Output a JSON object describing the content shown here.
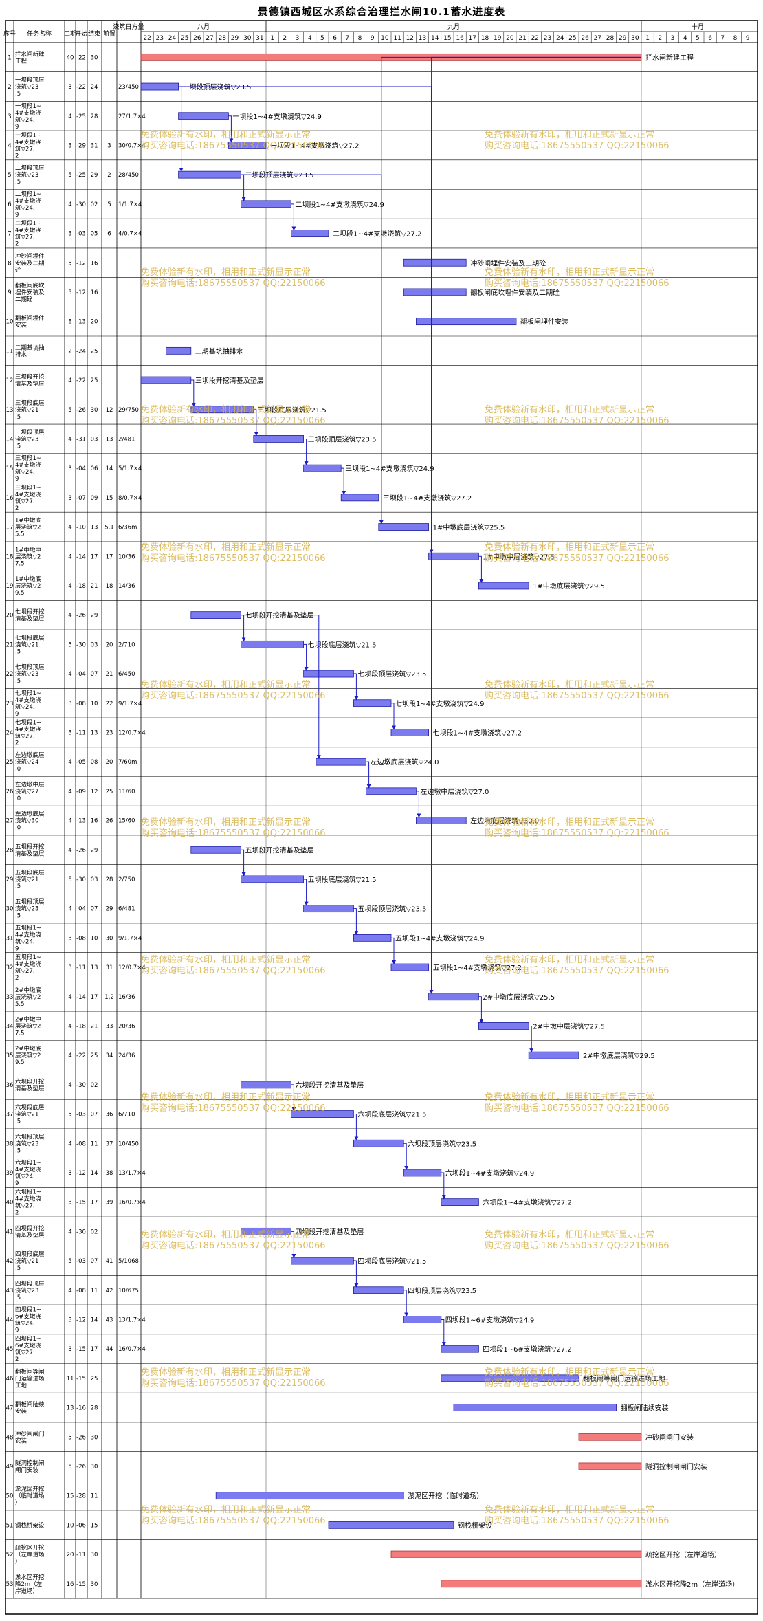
{
  "title": "景德镇西城区水系综合治理拦水闸10.1蓄水进度表",
  "columns": [
    "序号",
    "任务名称",
    "工期",
    "开始",
    "结束",
    "前置",
    "浇筑日方量"
  ],
  "months": [
    "八月",
    "九月",
    "十月"
  ],
  "day_labels": [
    "22",
    "23",
    "24",
    "25",
    "26",
    "27",
    "28",
    "29",
    "30",
    "31",
    "1",
    "2",
    "3",
    "4",
    "5",
    "6",
    "7",
    "8",
    "9",
    "10",
    "11",
    "12",
    "13",
    "14",
    "15",
    "16",
    "17",
    "18",
    "19",
    "20",
    "21",
    "22",
    "23",
    "24",
    "25",
    "26",
    "27",
    "28",
    "29",
    "30",
    "1",
    "2",
    "3",
    "4",
    "5",
    "6",
    "7",
    "8",
    "9"
  ],
  "watermark": {
    "line1": "免费体验新有水印，相用和正式新显示正常",
    "line2": "购买咨询电话:18675550537 QQ:22150066"
  },
  "colors": {
    "task_bar": "#7b7bef",
    "critical_bar": "#f47b7b",
    "link": "#1a1ac8",
    "grid": "#000000"
  },
  "chart_data": {
    "type": "gantt",
    "x_start": "08-22",
    "x_end": "10-09",
    "today_line": "09-01",
    "tasks": [
      {
        "id": "1",
        "name": "拦水闸新建工程",
        "dur": "40",
        "start": "-22",
        "end": "30",
        "pred": "",
        "vol": "",
        "bar_start": "08-22",
        "bar_end": "09-30",
        "critical": true,
        "label": "拦水闸新建工程"
      },
      {
        "id": "2",
        "name": "一坝段顶层浇筑▽23.5",
        "dur": "3",
        "start": "-22",
        "end": "24",
        "pred": "",
        "vol": "23/450",
        "bar_start": "08-22",
        "bar_end": "08-24",
        "critical": false,
        "label": "一坝段顶层浇筑▽23.5"
      },
      {
        "id": "3",
        "name": "一坝段1~4#支墩浇筑▽24.9",
        "dur": "4",
        "start": "-25",
        "end": "28",
        "pred": "",
        "vol": "27/1.7×4",
        "bar_start": "08-25",
        "bar_end": "08-28",
        "critical": false,
        "label": "一坝段1~4#支墩浇筑▽24.9"
      },
      {
        "id": "4",
        "name": "一坝段1~4#支墩浇筑▽27.2",
        "dur": "3",
        "start": "-29",
        "end": "31",
        "pred": "3",
        "vol": "30/0.7×4",
        "bar_start": "08-29",
        "bar_end": "08-31",
        "critical": false,
        "label": "一坝段1~4#支墩浇筑▽27.2"
      },
      {
        "id": "5",
        "name": "二坝段顶层浇筑▽23.5",
        "dur": "5",
        "start": "-25",
        "end": "29",
        "pred": "2",
        "vol": "28/450",
        "bar_start": "08-25",
        "bar_end": "08-29",
        "critical": false,
        "label": "二坝段顶层浇筑▽23.5"
      },
      {
        "id": "6",
        "name": "二坝段1~4#支墩浇筑▽24.9",
        "dur": "4",
        "start": "-30",
        "end": "02",
        "pred": "5",
        "vol": "1/1.7×4",
        "bar_start": "08-30",
        "bar_end": "09-02",
        "critical": false,
        "label": "二坝段1~4#支墩浇筑▽24.9"
      },
      {
        "id": "7",
        "name": "二坝段1~4#支墩浇筑▽27.2",
        "dur": "3",
        "start": "-03",
        "end": "05",
        "pred": "6",
        "vol": "4/0.7×4",
        "bar_start": "09-03",
        "bar_end": "09-05",
        "critical": false,
        "label": "二坝段1~4#支墩浇筑▽27.2"
      },
      {
        "id": "8",
        "name": "冲砂闸埋件安装及二期砼",
        "dur": "5",
        "start": "-12",
        "end": "16",
        "pred": "",
        "vol": "",
        "bar_start": "09-12",
        "bar_end": "09-16",
        "critical": false,
        "label": "冲砂闸埋件安装及二期砼"
      },
      {
        "id": "9",
        "name": "翻板闸底坎埋件安装及二期砼",
        "dur": "5",
        "start": "-12",
        "end": "16",
        "pred": "",
        "vol": "",
        "bar_start": "09-12",
        "bar_end": "09-16",
        "critical": false,
        "label": "翻板闸底坎埋件安装及二期砼"
      },
      {
        "id": "10",
        "name": "翻板闸埋件安装",
        "dur": "8",
        "start": "-13",
        "end": "20",
        "pred": "",
        "vol": "",
        "bar_start": "09-13",
        "bar_end": "09-20",
        "critical": false,
        "label": "翻板闸埋件安装"
      },
      {
        "id": "11",
        "name": "二期基坑抽排水",
        "dur": "2",
        "start": "-24",
        "end": "25",
        "pred": "",
        "vol": "",
        "bar_start": "08-24",
        "bar_end": "08-25",
        "critical": false,
        "label": "二期基坑抽排水"
      },
      {
        "id": "12",
        "name": "三坝段开挖清基及垫层",
        "dur": "4",
        "start": "-22",
        "end": "25",
        "pred": "",
        "vol": "",
        "bar_start": "08-22",
        "bar_end": "08-25",
        "critical": false,
        "label": "三坝段开挖清基及垫层"
      },
      {
        "id": "13",
        "name": "三坝段底层浇筑▽21.5",
        "dur": "5",
        "start": "-26",
        "end": "30",
        "pred": "12",
        "vol": "29/750",
        "bar_start": "08-26",
        "bar_end": "08-30",
        "critical": false,
        "label": "三坝段底层浇筑▽21.5"
      },
      {
        "id": "14",
        "name": "三坝段顶层浇筑▽23.5",
        "dur": "4",
        "start": "-31",
        "end": "03",
        "pred": "13",
        "vol": "2/481",
        "bar_start": "08-31",
        "bar_end": "09-03",
        "critical": false,
        "label": "三坝段顶层浇筑▽23.5"
      },
      {
        "id": "15",
        "name": "三坝段1~4#支墩浇筑▽24.9",
        "dur": "3",
        "start": "-04",
        "end": "06",
        "pred": "14",
        "vol": "5/1.7×4",
        "bar_start": "09-04",
        "bar_end": "09-06",
        "critical": false,
        "label": "三坝段1~4#支墩浇筑▽24.9"
      },
      {
        "id": "16",
        "name": "三坝段1~4#支墩浇筑▽27.2",
        "dur": "3",
        "start": "-07",
        "end": "09",
        "pred": "15",
        "vol": "8/0.7×4",
        "bar_start": "09-07",
        "bar_end": "09-09",
        "critical": false,
        "label": "三坝段1~4#支墩浇筑▽27.2"
      },
      {
        "id": "17",
        "name": "1#中墩底层浇筑▽25.5",
        "dur": "4",
        "start": "-10",
        "end": "13",
        "pred": "5,1",
        "vol": "6/36m",
        "bar_start": "09-10",
        "bar_end": "09-13",
        "critical": false,
        "label": "1#中墩底层浇筑▽25.5"
      },
      {
        "id": "18",
        "name": "1#中墩中层浇筑▽27.5",
        "dur": "4",
        "start": "-14",
        "end": "17",
        "pred": "17",
        "vol": "10/36",
        "bar_start": "09-14",
        "bar_end": "09-17",
        "critical": false,
        "label": "1#中墩中层浇筑▽27.5"
      },
      {
        "id": "19",
        "name": "1#中墩底层浇筑▽29.5",
        "dur": "4",
        "start": "-18",
        "end": "21",
        "pred": "18",
        "vol": "14/36",
        "bar_start": "09-18",
        "bar_end": "09-21",
        "critical": false,
        "label": "1#中墩底层浇筑▽29.5"
      },
      {
        "id": "20",
        "name": "七坝段开挖清基及垫层",
        "dur": "4",
        "start": "-26",
        "end": "29",
        "pred": "",
        "vol": "",
        "bar_start": "08-26",
        "bar_end": "08-29",
        "critical": false,
        "label": "七坝段开挖清基及垫层"
      },
      {
        "id": "21",
        "name": "七坝段底层浇筑▽21.5",
        "dur": "5",
        "start": "-30",
        "end": "03",
        "pred": "20",
        "vol": "2/710",
        "bar_start": "08-30",
        "bar_end": "09-03",
        "critical": false,
        "label": "七坝段底层浇筑▽21.5"
      },
      {
        "id": "22",
        "name": "七坝段顶层浇筑▽23.5",
        "dur": "4",
        "start": "-04",
        "end": "07",
        "pred": "21",
        "vol": "6/450",
        "bar_start": "09-04",
        "bar_end": "09-07",
        "critical": false,
        "label": "七坝段顶层浇筑▽23.5"
      },
      {
        "id": "23",
        "name": "七坝段1~4#支墩浇筑▽24.9",
        "dur": "3",
        "start": "-08",
        "end": "10",
        "pred": "22",
        "vol": "9/1.7×4",
        "bar_start": "09-08",
        "bar_end": "09-10",
        "critical": false,
        "label": "七坝段1~4#支墩浇筑▽24.9"
      },
      {
        "id": "24",
        "name": "七坝段1~4#支墩浇筑▽27.2",
        "dur": "3",
        "start": "-11",
        "end": "13",
        "pred": "23",
        "vol": "12/0.7×4",
        "bar_start": "09-11",
        "bar_end": "09-13",
        "critical": false,
        "label": "七坝段1~4#支墩浇筑▽27.2"
      },
      {
        "id": "25",
        "name": "左边墩底层浇筑▽24.0",
        "dur": "4",
        "start": "-05",
        "end": "08",
        "pred": "20",
        "vol": "7/60m",
        "bar_start": "09-05",
        "bar_end": "09-08",
        "critical": false,
        "label": "左边墩底层浇筑▽24.0"
      },
      {
        "id": "26",
        "name": "左边墩中层浇筑▽27.0",
        "dur": "4",
        "start": "-09",
        "end": "12",
        "pred": "25",
        "vol": "11/60",
        "bar_start": "09-09",
        "bar_end": "09-12",
        "critical": false,
        "label": "左边墩中层浇筑▽27.0"
      },
      {
        "id": "27",
        "name": "左边墩底层浇筑▽30.0",
        "dur": "4",
        "start": "-13",
        "end": "16",
        "pred": "26",
        "vol": "15/60",
        "bar_start": "09-13",
        "bar_end": "09-16",
        "critical": false,
        "label": "左边墩底层浇筑▽30.0"
      },
      {
        "id": "28",
        "name": "五坝段开挖清基及垫层",
        "dur": "4",
        "start": "-26",
        "end": "29",
        "pred": "",
        "vol": "",
        "bar_start": "08-26",
        "bar_end": "08-29",
        "critical": false,
        "label": "五坝段开挖清基及垫层"
      },
      {
        "id": "29",
        "name": "五坝段底层浇筑▽21.5",
        "dur": "5",
        "start": "-30",
        "end": "03",
        "pred": "28",
        "vol": "2/750",
        "bar_start": "08-30",
        "bar_end": "09-03",
        "critical": false,
        "label": "五坝段底层浇筑▽21.5"
      },
      {
        "id": "30",
        "name": "五坝段顶层浇筑▽23.5",
        "dur": "4",
        "start": "-04",
        "end": "07",
        "pred": "29",
        "vol": "6/481",
        "bar_start": "09-04",
        "bar_end": "09-07",
        "critical": false,
        "label": "五坝段顶层浇筑▽23.5"
      },
      {
        "id": "31",
        "name": "五坝段1~4#支墩浇筑▽24.9",
        "dur": "3",
        "start": "-08",
        "end": "10",
        "pred": "30",
        "vol": "9/1.7×4",
        "bar_start": "09-08",
        "bar_end": "09-10",
        "critical": false,
        "label": "五坝段1~4#支墩浇筑▽24.9"
      },
      {
        "id": "32",
        "name": "五坝段1~4#支墩浇筑▽27.2",
        "dur": "3",
        "start": "-11",
        "end": "13",
        "pred": "31",
        "vol": "12/0.7×4",
        "bar_start": "09-11",
        "bar_end": "09-13",
        "critical": false,
        "label": "五坝段1~4#支墩浇筑▽27.2"
      },
      {
        "id": "33",
        "name": "2#中墩底层浇筑▽25.5",
        "dur": "4",
        "start": "-14",
        "end": "17",
        "pred": "1,2",
        "vol": "16/36",
        "bar_start": "09-14",
        "bar_end": "09-17",
        "critical": false,
        "label": "2#中墩底层浇筑▽25.5"
      },
      {
        "id": "34",
        "name": "2#中墩中层浇筑▽27.5",
        "dur": "4",
        "start": "-18",
        "end": "21",
        "pred": "33",
        "vol": "20/36",
        "bar_start": "09-18",
        "bar_end": "09-21",
        "critical": false,
        "label": "2#中墩中层浇筑▽27.5"
      },
      {
        "id": "35",
        "name": "2#中墩底层浇筑▽29.5",
        "dur": "4",
        "start": "-22",
        "end": "25",
        "pred": "34",
        "vol": "24/36",
        "bar_start": "09-22",
        "bar_end": "09-25",
        "critical": false,
        "label": "2#中墩底层浇筑▽29.5"
      },
      {
        "id": "36",
        "name": "六坝段开挖清基及垫层",
        "dur": "4",
        "start": "-30",
        "end": "02",
        "pred": "",
        "vol": "",
        "bar_start": "08-30",
        "bar_end": "09-02",
        "critical": false,
        "label": "六坝段开挖清基及垫层"
      },
      {
        "id": "37",
        "name": "六坝段底层浇筑▽21.5",
        "dur": "5",
        "start": "-03",
        "end": "07",
        "pred": "36",
        "vol": "6/710",
        "bar_start": "09-03",
        "bar_end": "09-07",
        "critical": false,
        "label": "六坝段底层浇筑▽21.5"
      },
      {
        "id": "38",
        "name": "六坝段顶层浇筑▽23.5",
        "dur": "4",
        "start": "-08",
        "end": "11",
        "pred": "37",
        "vol": "10/450",
        "bar_start": "09-08",
        "bar_end": "09-11",
        "critical": false,
        "label": "六坝段顶层浇筑▽23.5"
      },
      {
        "id": "39",
        "name": "六坝段1~4#支墩浇筑▽24.9",
        "dur": "3",
        "start": "-12",
        "end": "14",
        "pred": "38",
        "vol": "13/1.7×4",
        "bar_start": "09-12",
        "bar_end": "09-14",
        "critical": false,
        "label": "六坝段1~4#支墩浇筑▽24.9"
      },
      {
        "id": "40",
        "name": "六坝段1~4#支墩浇筑▽27.2",
        "dur": "3",
        "start": "-15",
        "end": "17",
        "pred": "39",
        "vol": "16/0.7×4",
        "bar_start": "09-15",
        "bar_end": "09-17",
        "critical": false,
        "label": "六坝段1~4#支墩浇筑▽27.2"
      },
      {
        "id": "41",
        "name": "四坝段开挖清基及垫层",
        "dur": "4",
        "start": "-30",
        "end": "02",
        "pred": "",
        "vol": "",
        "bar_start": "08-30",
        "bar_end": "09-02",
        "critical": false,
        "label": "四坝段开挖清基及垫层"
      },
      {
        "id": "42",
        "name": "四坝段底层浇筑▽21.5",
        "dur": "5",
        "start": "-03",
        "end": "07",
        "pred": "41",
        "vol": "5/1068",
        "bar_start": "09-03",
        "bar_end": "09-07",
        "critical": false,
        "label": "四坝段底层浇筑▽21.5"
      },
      {
        "id": "43",
        "name": "四坝段顶层浇筑▽23.5",
        "dur": "4",
        "start": "-08",
        "end": "11",
        "pred": "42",
        "vol": "10/675",
        "bar_start": "09-08",
        "bar_end": "09-11",
        "critical": false,
        "label": "四坝段顶层浇筑▽23.5"
      },
      {
        "id": "44",
        "name": "四坝段1~6#支墩浇筑▽24.9",
        "dur": "3",
        "start": "-12",
        "end": "14",
        "pred": "43",
        "vol": "13/1.7×4",
        "bar_start": "09-12",
        "bar_end": "09-14",
        "critical": false,
        "label": "四坝段1~6#支墩浇筑▽24.9"
      },
      {
        "id": "45",
        "name": "四坝段1~6#支墩浇筑▽27.2",
        "dur": "3",
        "start": "-15",
        "end": "17",
        "pred": "44",
        "vol": "16/0.7×4",
        "bar_start": "09-15",
        "bar_end": "09-17",
        "critical": false,
        "label": "四坝段1~6#支墩浇筑▽27.2"
      },
      {
        "id": "46",
        "name": "翻板闸等闸门运输进场工地",
        "dur": "11",
        "start": "-15",
        "end": "25",
        "pred": "",
        "vol": "",
        "bar_start": "09-15",
        "bar_end": "09-25",
        "critical": false,
        "label": "翻板闸等闸门运输进场工地"
      },
      {
        "id": "47",
        "name": "翻板闸陆续安装",
        "dur": "13",
        "start": "-16",
        "end": "28",
        "pred": "",
        "vol": "",
        "bar_start": "09-16",
        "bar_end": "09-28",
        "critical": false,
        "label": "翻板闸陆续安装"
      },
      {
        "id": "48",
        "name": "冲砂闸闸门安装",
        "dur": "5",
        "start": "-26",
        "end": "30",
        "pred": "",
        "vol": "",
        "bar_start": "09-26",
        "bar_end": "09-30",
        "critical": true,
        "label": "冲砂闸闸门安装"
      },
      {
        "id": "49",
        "name": "隧洞控制闸闸门安装",
        "dur": "5",
        "start": "-26",
        "end": "30",
        "pred": "",
        "vol": "",
        "bar_start": "09-26",
        "bar_end": "09-30",
        "critical": true,
        "label": "隧洞控制闸闸门安装"
      },
      {
        "id": "50",
        "name": "淤泥区开挖（临时道场）",
        "dur": "15",
        "start": "-28",
        "end": "11",
        "pred": "",
        "vol": "",
        "bar_start": "08-28",
        "bar_end": "09-11",
        "critical": false,
        "label": "淤泥区开挖（临时道场）"
      },
      {
        "id": "51",
        "name": "钢栈桥架设",
        "dur": "10",
        "start": "-06",
        "end": "15",
        "pred": "",
        "vol": "",
        "bar_start": "09-06",
        "bar_end": "09-15",
        "critical": false,
        "label": "钢栈桥架设"
      },
      {
        "id": "52",
        "name": "疏挖区开挖（左岸道场）",
        "dur": "20",
        "start": "-11",
        "end": "30",
        "pred": "",
        "vol": "",
        "bar_start": "09-11",
        "bar_end": "09-30",
        "critical": true,
        "label": "疏挖区开挖（左岸道场）"
      },
      {
        "id": "53",
        "name": "淤水区开挖降2m（左岸道场）",
        "dur": "16",
        "start": "-15",
        "end": "30",
        "pred": "",
        "vol": "",
        "bar_start": "09-15",
        "bar_end": "09-30",
        "critical": true,
        "label": "淤水区开挖降2m（左岸道场）"
      }
    ]
  }
}
